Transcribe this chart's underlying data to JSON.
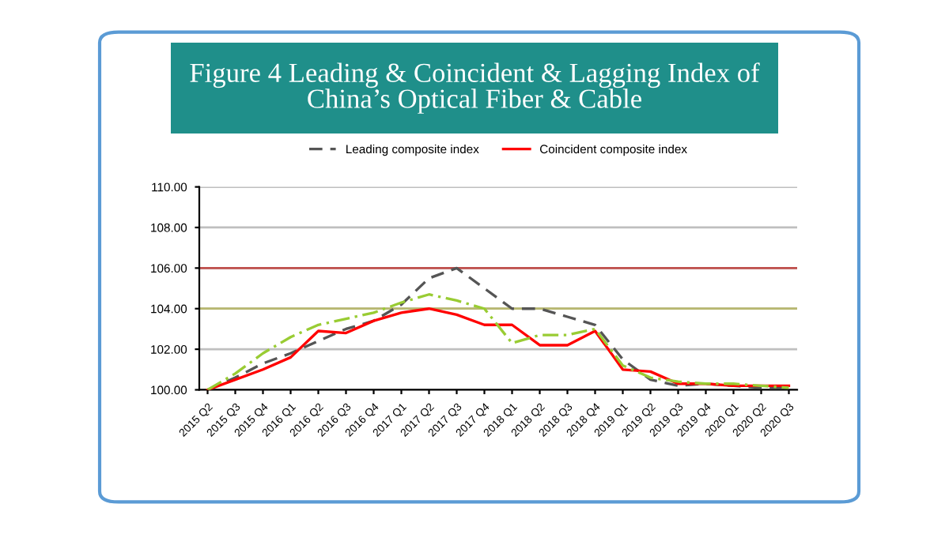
{
  "chart_data": {
    "type": "line",
    "title": "Figure 4 Leading & Coincident & Lagging Index of\nChina’s Optical Fiber & Cable",
    "categories": [
      "2015 Q2",
      "2015 Q3",
      "2015 Q4",
      "2016 Q1",
      "2016 Q2",
      "2016 Q3",
      "2016 Q4",
      "2017 Q1",
      "2017 Q2",
      "2017 Q3",
      "2017 Q4",
      "2018 Q1",
      "2018 Q2",
      "2018 Q3",
      "2018 Q4",
      "2019 Q1",
      "2019 Q2",
      "2019 Q3",
      "2019 Q4",
      "2020 Q1",
      "2020 Q2",
      "2020 Q3"
    ],
    "series": [
      {
        "name": "Leading composite index",
        "color": "#555555",
        "line_style": "dashed",
        "values": [
          100,
          100.6,
          101.3,
          101.8,
          102.4,
          103.0,
          103.4,
          104.2,
          105.5,
          106.0,
          105.0,
          104.0,
          104.0,
          103.6,
          103.2,
          101.5,
          100.5,
          100.2,
          100.3,
          100.2,
          100.1,
          100.1
        ]
      },
      {
        "name": "Coincident composite index",
        "color": "#ff0000",
        "line_style": "solid",
        "values": [
          100,
          100.5,
          101.0,
          101.6,
          102.9,
          102.8,
          103.4,
          103.8,
          104.0,
          103.7,
          103.2,
          103.2,
          102.2,
          102.2,
          102.9,
          101.0,
          100.9,
          100.3,
          100.3,
          100.2,
          100.2,
          100.2
        ]
      },
      {
        "color": "#99cc33",
        "line_style": "dotted",
        "values": [
          100,
          100.8,
          101.8,
          102.6,
          103.2,
          103.5,
          103.8,
          104.3,
          104.7,
          104.4,
          104.0,
          102.3,
          102.7,
          102.7,
          103.0,
          101.2,
          100.6,
          100.4,
          100.3,
          100.3,
          100.2,
          100.1
        ]
      }
    ],
    "ylim": [
      100,
      110
    ],
    "yticks": [
      {
        "value": 100,
        "label": "100.00"
      },
      {
        "value": 102,
        "label": "102.00"
      },
      {
        "value": 104,
        "label": "104.00"
      },
      {
        "value": 106,
        "label": "106.00"
      },
      {
        "value": 108,
        "label": "108.00"
      },
      {
        "value": 110,
        "label": "110.00"
      }
    ],
    "ref_lines": [
      {
        "axis": "y",
        "value": 106,
        "color": "#c0504d"
      },
      {
        "axis": "y",
        "value": 104,
        "color": "#b8b870"
      }
    ],
    "grid": "y",
    "legend": "top",
    "marker": "none"
  }
}
